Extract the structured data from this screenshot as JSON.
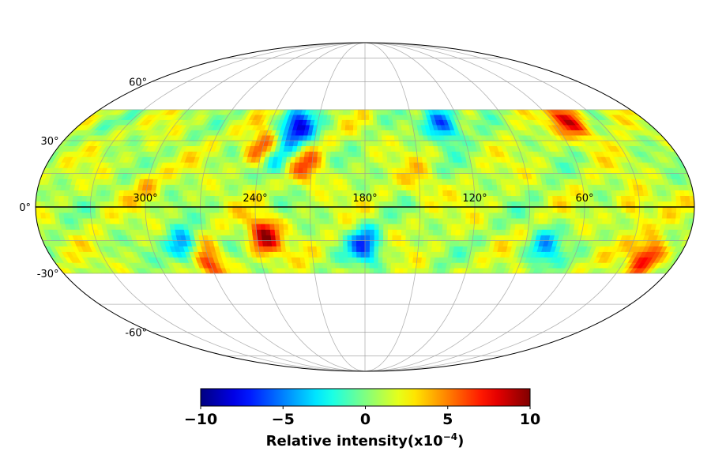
{
  "chart_data": {
    "type": "heatmap",
    "projection": "mollweide",
    "title": "",
    "colormap": "jet",
    "colorbar": {
      "label": "Relative intensity(x10",
      "label_exponent": "−4",
      "label_suffix": ")",
      "min": -10,
      "max": 10,
      "ticks": [
        {
          "value": -10,
          "label": "−10"
        },
        {
          "value": -5,
          "label": "−5"
        },
        {
          "value": 0,
          "label": "0"
        },
        {
          "value": 5,
          "label": "5"
        },
        {
          "value": 10,
          "label": "10"
        }
      ]
    },
    "data_coverage": {
      "dec_min": -30,
      "dec_max": 45
    },
    "longitude_ticks": [
      {
        "value": 300,
        "label": "300°"
      },
      {
        "value": 240,
        "label": "240°"
      },
      {
        "value": 180,
        "label": "180°"
      },
      {
        "value": 120,
        "label": "120°"
      },
      {
        "value": 60,
        "label": "60°"
      }
    ],
    "latitude_ticks": [
      {
        "value": 60,
        "label": "60°"
      },
      {
        "value": 30,
        "label": "30°"
      },
      {
        "value": 0,
        "label": "0°"
      },
      {
        "value": -30,
        "label": "-30°"
      },
      {
        "value": -60,
        "label": "-60°"
      }
    ],
    "grid": true,
    "features": [
      {
        "ra": 222,
        "dec": 36,
        "value": -9
      },
      {
        "ra": 131,
        "dec": 38,
        "value": -8
      },
      {
        "ra": 282,
        "dec": -18,
        "value": -7
      },
      {
        "ra": 180,
        "dec": -17,
        "value": -7
      },
      {
        "ra": 79,
        "dec": -18,
        "value": -5
      },
      {
        "ra": 231,
        "dec": 22,
        "value": -5
      },
      {
        "ra": 236,
        "dec": -13,
        "value": 8
      },
      {
        "ra": 240,
        "dec": 26,
        "value": 6
      },
      {
        "ra": 49,
        "dec": 39,
        "value": 7
      },
      {
        "ra": 18,
        "dec": -22,
        "value": 7
      },
      {
        "ra": 213,
        "dec": 18,
        "value": 4
      },
      {
        "ra": 33,
        "dec": 0,
        "value": 3
      },
      {
        "ra": 271,
        "dec": -25,
        "value": 6
      },
      {
        "ra": 300,
        "dec": 10,
        "value": 2
      },
      {
        "ra": 150,
        "dec": 10,
        "value": 2
      }
    ]
  }
}
